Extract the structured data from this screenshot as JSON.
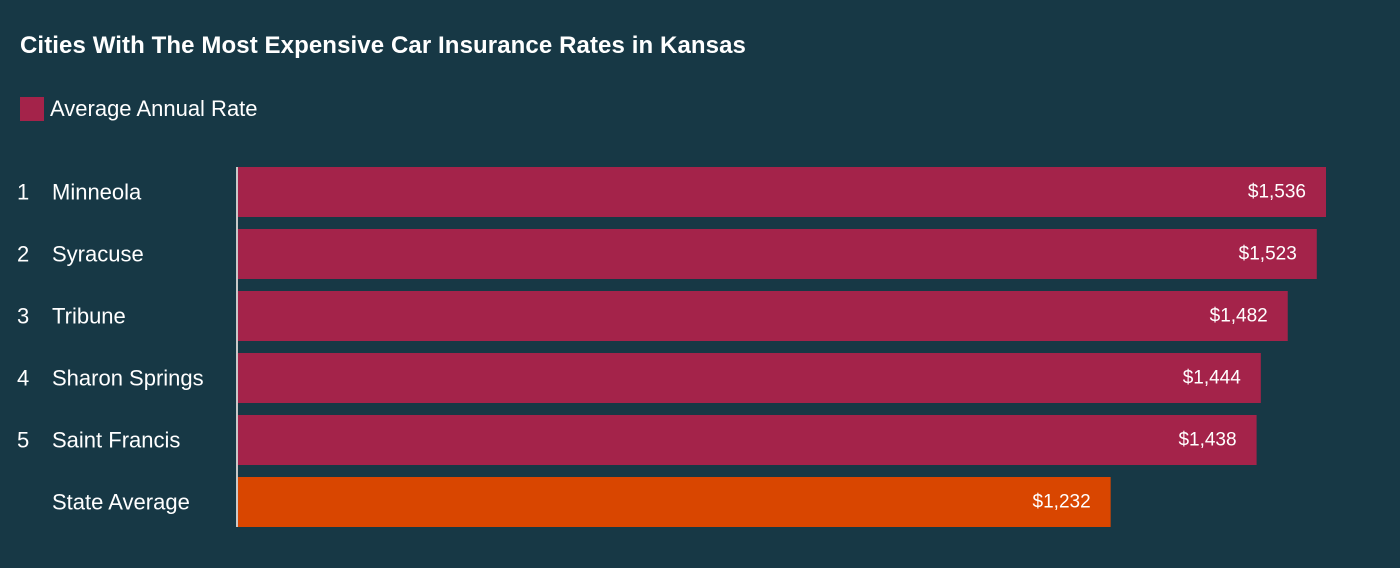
{
  "page": {
    "background": "#173845"
  },
  "chart_data": {
    "type": "bar",
    "orientation": "horizontal",
    "title": "Cities With The Most Expensive Car Insurance Rates in Kansas",
    "legend": {
      "placement": "top-left",
      "entries": [
        {
          "label": "Average Annual Rate",
          "color": "#a4234a"
        }
      ]
    },
    "categories": [
      "Minneola",
      "Syracuse",
      "Tribune",
      "Sharon Springs",
      "Saint Francis",
      "State Average"
    ],
    "ranks": [
      "1",
      "2",
      "3",
      "4",
      "5",
      ""
    ],
    "values": [
      1536,
      1523,
      1482,
      1444,
      1438,
      1232
    ],
    "value_labels": [
      "$1,536",
      "$1,523",
      "$1,482",
      "$1,444",
      "$1,438",
      "$1,232"
    ],
    "bar_colors": [
      "#a4234a",
      "#a4234a",
      "#a4234a",
      "#a4234a",
      "#a4234a",
      "#d94600"
    ],
    "xlim": [
      0,
      1536
    ],
    "grid": false,
    "axis_line_color": "#c9c9c9"
  }
}
